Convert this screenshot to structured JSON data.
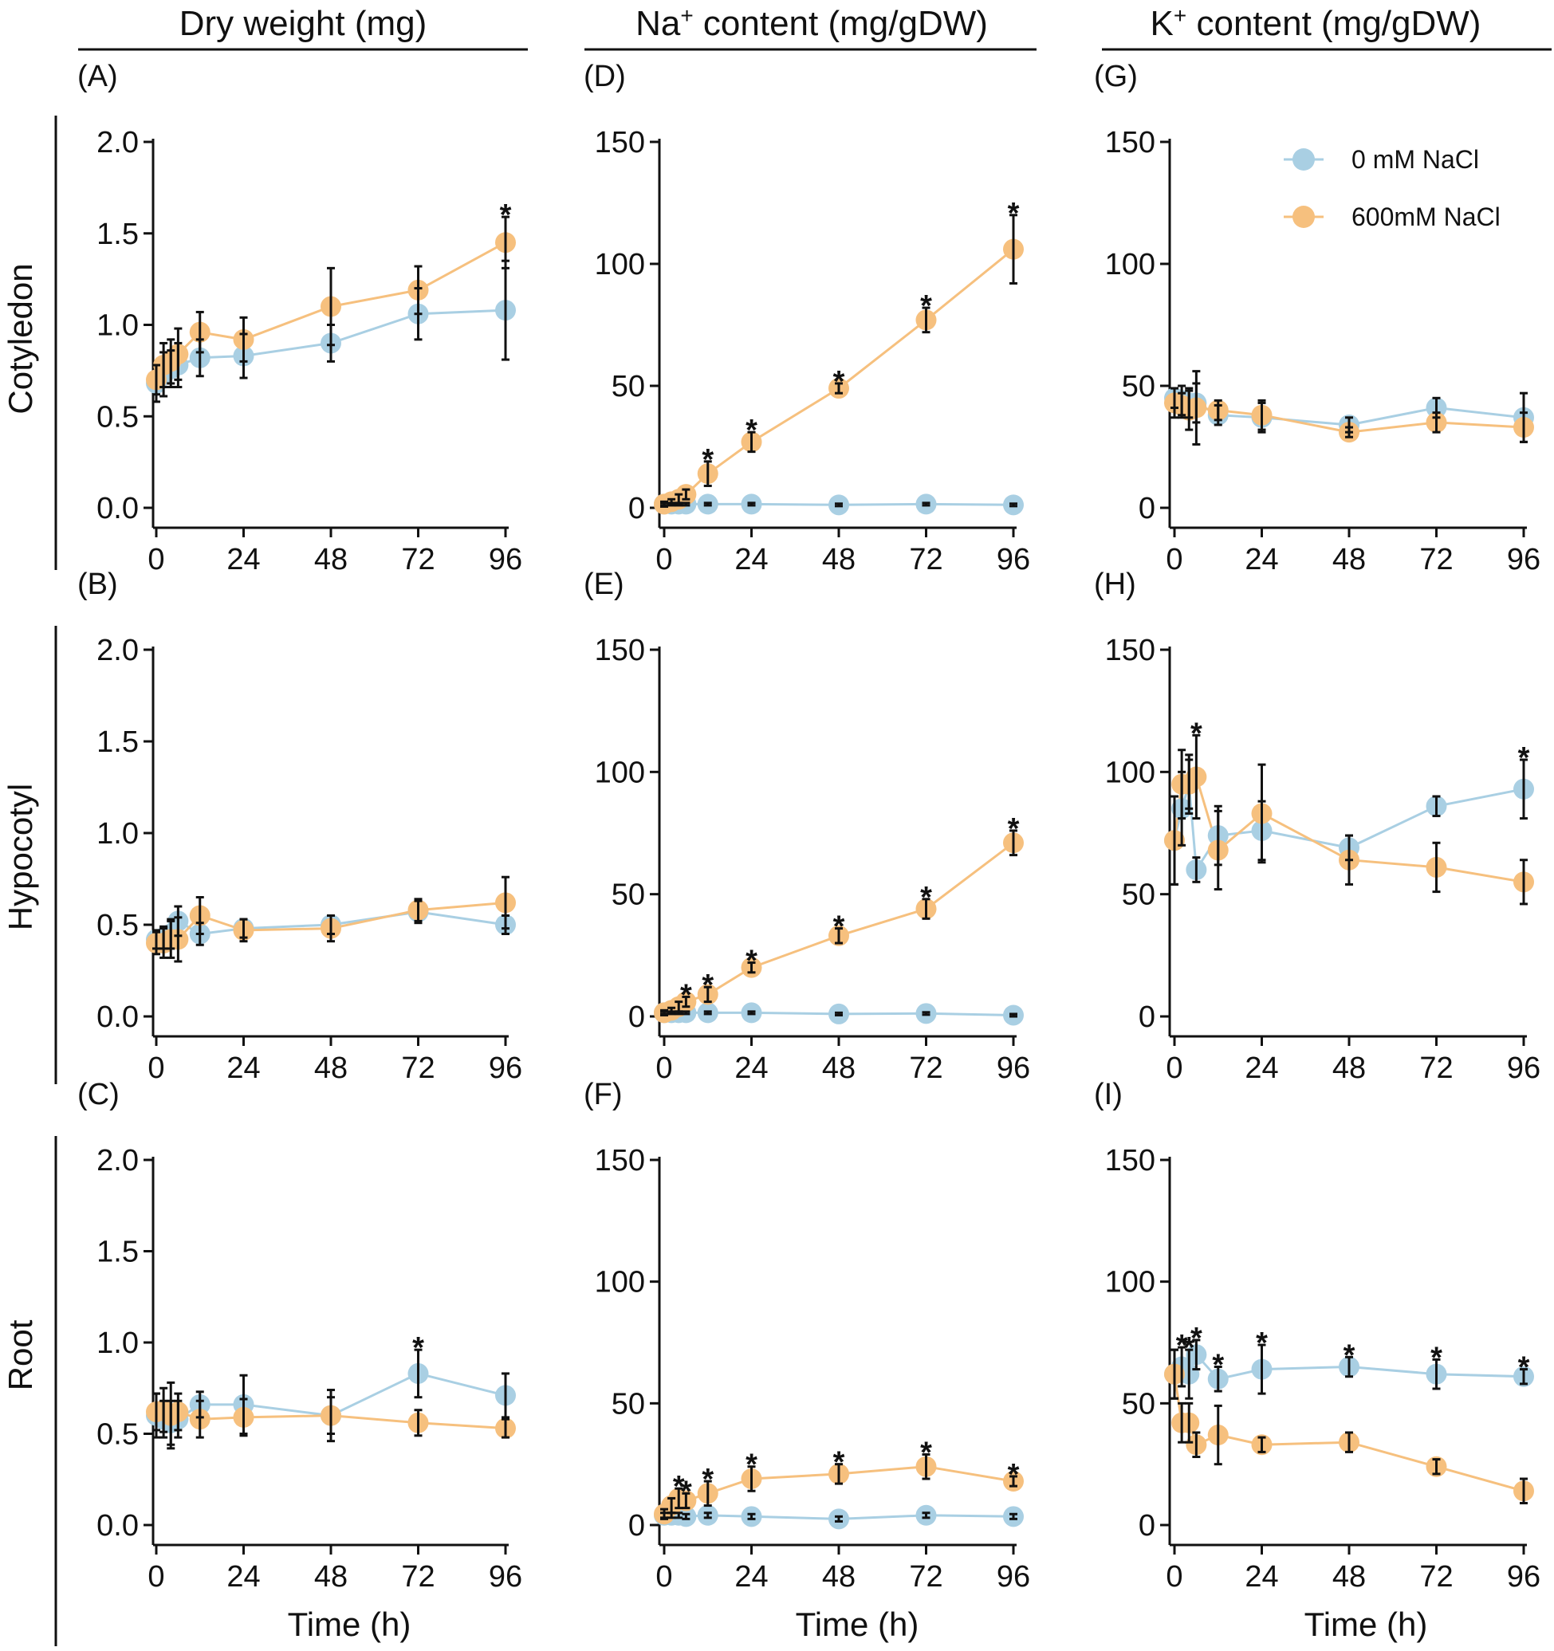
{
  "figure": {
    "column_titles": [
      {
        "main": "Dry weight (mg)",
        "sup": "",
        "rest": ""
      },
      {
        "main": "Na",
        "sup": "+",
        "rest": " content (mg/gDW)"
      },
      {
        "main": "K",
        "sup": "+",
        "rest": " content (mg/gDW)"
      }
    ],
    "row_labels": [
      "Cotyledon",
      "Hypocotyl",
      "Root"
    ],
    "xlabel": "Time (h)",
    "legend": {
      "position": "top-right of panel G",
      "entries": [
        {
          "label": "0 mM NaCl",
          "color": "#a9cfe3"
        },
        {
          "label": "600mM NaCl",
          "color": "#f6c07e"
        }
      ]
    },
    "colors": {
      "control": "#a9cfe3",
      "salt": "#f6c07e",
      "axis": "#111111",
      "error_bar": "#111111"
    }
  },
  "chart_data": [
    {
      "id": "A",
      "type": "line",
      "panel_label": "(A)",
      "x": [
        0,
        2,
        4,
        6,
        12,
        24,
        48,
        72,
        96
      ],
      "ylim": [
        0,
        2
      ],
      "yticks": [
        0,
        0.5,
        1,
        1.5,
        2
      ],
      "ytick_labels": [
        "0.0",
        "0.5",
        "1.0",
        "1.5",
        "2.0"
      ],
      "xticks": [
        0,
        24,
        48,
        72,
        96
      ],
      "series": [
        {
          "name": "0 mM NaCl",
          "values": [
            0.68,
            0.73,
            0.76,
            0.78,
            0.82,
            0.83,
            0.9,
            1.06,
            1.08
          ],
          "errors": [
            0.1,
            0.12,
            0.1,
            0.12,
            0.1,
            0.12,
            0.1,
            0.14,
            0.27
          ],
          "stars": []
        },
        {
          "name": "600mM NaCl",
          "values": [
            0.7,
            0.78,
            0.8,
            0.84,
            0.96,
            0.92,
            1.1,
            1.19,
            1.45
          ],
          "errors": [
            0.08,
            0.12,
            0.12,
            0.14,
            0.11,
            0.12,
            0.21,
            0.13,
            0.14
          ],
          "stars": [
            96
          ]
        }
      ]
    },
    {
      "id": "B",
      "type": "line",
      "panel_label": "(B)",
      "x": [
        0,
        2,
        4,
        6,
        12,
        24,
        48,
        72,
        96
      ],
      "ylim": [
        0,
        2
      ],
      "yticks": [
        0,
        0.5,
        1,
        1.5,
        2
      ],
      "ytick_labels": [
        "0.0",
        "0.5",
        "1.0",
        "1.5",
        "2.0"
      ],
      "xticks": [
        0,
        24,
        48,
        72,
        96
      ],
      "series": [
        {
          "name": "0 mM NaCl",
          "values": [
            0.42,
            0.43,
            0.45,
            0.52,
            0.45,
            0.48,
            0.5,
            0.57,
            0.5
          ],
          "errors": [
            0.05,
            0.06,
            0.08,
            0.08,
            0.06,
            0.05,
            0.05,
            0.06,
            0.05
          ],
          "stars": []
        },
        {
          "name": "600mM NaCl",
          "values": [
            0.4,
            0.4,
            0.42,
            0.42,
            0.55,
            0.47,
            0.48,
            0.58,
            0.62
          ],
          "errors": [
            0.06,
            0.08,
            0.1,
            0.12,
            0.1,
            0.06,
            0.07,
            0.06,
            0.14
          ],
          "stars": []
        }
      ]
    },
    {
      "id": "C",
      "type": "line",
      "panel_label": "(C)",
      "x": [
        0,
        2,
        4,
        6,
        12,
        24,
        48,
        72,
        96
      ],
      "ylim": [
        0,
        2
      ],
      "yticks": [
        0,
        0.5,
        1,
        1.5,
        2
      ],
      "ytick_labels": [
        "0.0",
        "0.5",
        "1.0",
        "1.5",
        "2.0"
      ],
      "xticks": [
        0,
        24,
        48,
        72,
        96
      ],
      "series": [
        {
          "name": "0 mM NaCl",
          "values": [
            0.6,
            0.58,
            0.56,
            0.58,
            0.66,
            0.66,
            0.6,
            0.83,
            0.71
          ],
          "errors": [
            0.12,
            0.1,
            0.12,
            0.1,
            0.07,
            0.16,
            0.14,
            0.13,
            0.12
          ],
          "stars": [
            72
          ]
        },
        {
          "name": "600mM NaCl",
          "values": [
            0.62,
            0.63,
            0.6,
            0.62,
            0.58,
            0.59,
            0.6,
            0.56,
            0.53
          ],
          "errors": [
            0.1,
            0.12,
            0.18,
            0.1,
            0.1,
            0.1,
            0.1,
            0.07,
            0.05
          ],
          "stars": []
        }
      ]
    },
    {
      "id": "D",
      "type": "line",
      "panel_label": "(D)",
      "x": [
        0,
        2,
        4,
        6,
        12,
        24,
        48,
        72,
        96
      ],
      "ylim": [
        0,
        150
      ],
      "yticks": [
        0,
        50,
        100,
        150
      ],
      "ytick_labels": [
        "0",
        "50",
        "100",
        "150"
      ],
      "xticks": [
        0,
        24,
        48,
        72,
        96
      ],
      "series": [
        {
          "name": "0 mM NaCl",
          "values": [
            1.5,
            1.5,
            1.5,
            1.5,
            1.5,
            1.5,
            1.2,
            1.5,
            1.2
          ],
          "errors": [
            0.5,
            0.5,
            0.5,
            0.5,
            0.5,
            0.5,
            0.5,
            0.5,
            0.5
          ],
          "stars": []
        },
        {
          "name": "600mM NaCl",
          "values": [
            1.5,
            2.5,
            3.5,
            5.5,
            14,
            27,
            49,
            77,
            106
          ],
          "errors": [
            1,
            1,
            2,
            2,
            5,
            4,
            2,
            5,
            14
          ],
          "stars": [
            12,
            24,
            48,
            72,
            96
          ]
        }
      ]
    },
    {
      "id": "E",
      "type": "line",
      "panel_label": "(E)",
      "x": [
        0,
        2,
        4,
        6,
        12,
        24,
        48,
        72,
        96
      ],
      "ylim": [
        0,
        150
      ],
      "yticks": [
        0,
        50,
        100,
        150
      ],
      "ytick_labels": [
        "0",
        "50",
        "100",
        "150"
      ],
      "xticks": [
        0,
        24,
        48,
        72,
        96
      ],
      "series": [
        {
          "name": "0 mM NaCl",
          "values": [
            1.5,
            1.5,
            1.5,
            1.5,
            1.5,
            1.5,
            1.0,
            1.2,
            0.5
          ],
          "errors": [
            0.5,
            0.5,
            0.5,
            0.5,
            0.5,
            0.5,
            0.5,
            0.5,
            0.5
          ],
          "stars": []
        },
        {
          "name": "600mM NaCl",
          "values": [
            1.5,
            2.5,
            4,
            6,
            9,
            20,
            33,
            44,
            71
          ],
          "errors": [
            1,
            1,
            2,
            2,
            3,
            2,
            3,
            4,
            5
          ],
          "stars": [
            6,
            12,
            24,
            48,
            72,
            96
          ]
        }
      ]
    },
    {
      "id": "F",
      "type": "line",
      "panel_label": "(F)",
      "x": [
        0,
        2,
        4,
        6,
        12,
        24,
        48,
        72,
        96
      ],
      "ylim": [
        0,
        150
      ],
      "yticks": [
        0,
        50,
        100,
        150
      ],
      "ytick_labels": [
        "0",
        "50",
        "100",
        "150"
      ],
      "xticks": [
        0,
        24,
        48,
        72,
        96
      ],
      "series": [
        {
          "name": "0 mM NaCl",
          "values": [
            4,
            4,
            4,
            3.5,
            4,
            3.5,
            2.5,
            4,
            3.5
          ],
          "errors": [
            1,
            1,
            1,
            1,
            1,
            1,
            1,
            1,
            1
          ],
          "stars": []
        },
        {
          "name": "600mM NaCl",
          "values": [
            4.5,
            8,
            11,
            10,
            13,
            19,
            21,
            24,
            18
          ],
          "errors": [
            2,
            3,
            4,
            3,
            5,
            5,
            4,
            5,
            2
          ],
          "stars": [
            4,
            6,
            12,
            24,
            48,
            72,
            96
          ]
        }
      ]
    },
    {
      "id": "G",
      "type": "line",
      "panel_label": "(G)",
      "x": [
        0,
        2,
        4,
        6,
        12,
        24,
        48,
        72,
        96
      ],
      "ylim": [
        0,
        150
      ],
      "yticks": [
        0,
        50,
        100,
        150
      ],
      "ytick_labels": [
        "0",
        "50",
        "100",
        "150"
      ],
      "xticks": [
        0,
        24,
        48,
        72,
        96
      ],
      "series": [
        {
          "name": "0 mM NaCl",
          "values": [
            45,
            44,
            43,
            43,
            38,
            37,
            34,
            41,
            37
          ],
          "errors": [
            4,
            6,
            6,
            8,
            4,
            6,
            3,
            4,
            10
          ],
          "stars": []
        },
        {
          "name": "600mM NaCl",
          "values": [
            43,
            42,
            40,
            41,
            40,
            38,
            31,
            35,
            33
          ],
          "errors": [
            6,
            5,
            8,
            15,
            4,
            6,
            2,
            4,
            6
          ],
          "stars": []
        }
      ]
    },
    {
      "id": "H",
      "type": "line",
      "panel_label": "(H)",
      "x": [
        0,
        2,
        4,
        6,
        12,
        24,
        48,
        72,
        96
      ],
      "ylim": [
        0,
        150
      ],
      "yticks": [
        0,
        50,
        100,
        150
      ],
      "ytick_labels": [
        "0",
        "50",
        "100",
        "150"
      ],
      "xticks": [
        0,
        24,
        48,
        72,
        96
      ],
      "series": [
        {
          "name": "0 mM NaCl",
          "values": [
            72,
            85,
            95,
            60,
            74,
            76,
            69,
            86,
            93
          ],
          "errors": [
            18,
            15,
            12,
            5,
            12,
            12,
            5,
            4,
            12
          ],
          "stars": [
            96
          ]
        },
        {
          "name": "600mM NaCl",
          "values": [
            72,
            95,
            95,
            98,
            68,
            83,
            64,
            61,
            55
          ],
          "errors": [
            18,
            14,
            10,
            17,
            16,
            20,
            10,
            10,
            9
          ],
          "stars": [
            6
          ]
        }
      ]
    },
    {
      "id": "I",
      "type": "line",
      "panel_label": "(I)",
      "x": [
        0,
        2,
        4,
        6,
        12,
        24,
        48,
        72,
        96
      ],
      "ylim": [
        0,
        150
      ],
      "yticks": [
        0,
        50,
        100,
        150
      ],
      "ytick_labels": [
        "0",
        "50",
        "100",
        "150"
      ],
      "xticks": [
        0,
        24,
        48,
        72,
        96
      ],
      "series": [
        {
          "name": "0 mM NaCl",
          "values": [
            62,
            65,
            62,
            70,
            60,
            64,
            65,
            62,
            61
          ],
          "errors": [
            10,
            8,
            10,
            6,
            5,
            10,
            4,
            6,
            3
          ],
          "stars": [
            2,
            4,
            6,
            12,
            24,
            48,
            72,
            96
          ]
        },
        {
          "name": "600mM NaCl",
          "values": [
            62,
            42,
            42,
            33,
            37,
            33,
            34,
            24,
            14
          ],
          "errors": [
            10,
            8,
            8,
            5,
            12,
            3,
            4,
            3,
            5
          ],
          "stars": []
        }
      ]
    }
  ]
}
